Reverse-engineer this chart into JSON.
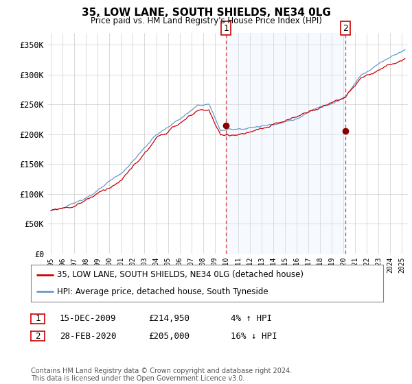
{
  "title": "35, LOW LANE, SOUTH SHIELDS, NE34 0LG",
  "subtitle": "Price paid vs. HM Land Registry's House Price Index (HPI)",
  "ylabel_ticks": [
    "£0",
    "£50K",
    "£100K",
    "£150K",
    "£200K",
    "£250K",
    "£300K",
    "£350K"
  ],
  "ytick_values": [
    0,
    50000,
    100000,
    150000,
    200000,
    250000,
    300000,
    350000
  ],
  "ylim": [
    0,
    370000
  ],
  "xlim_start": 1994.7,
  "xlim_end": 2025.5,
  "marker1_x": 2009.96,
  "marker1_y": 214950,
  "marker2_x": 2020.17,
  "marker2_y": 205000,
  "legend_line1": "35, LOW LANE, SOUTH SHIELDS, NE34 0LG (detached house)",
  "legend_line2": "HPI: Average price, detached house, South Tyneside",
  "footer": "Contains HM Land Registry data © Crown copyright and database right 2024.\nThis data is licensed under the Open Government Licence v3.0.",
  "color_red": "#cc0000",
  "color_blue": "#6699cc",
  "color_fill": "#ddeeff",
  "color_dashed": "#dd4444",
  "background_color": "#ffffff"
}
